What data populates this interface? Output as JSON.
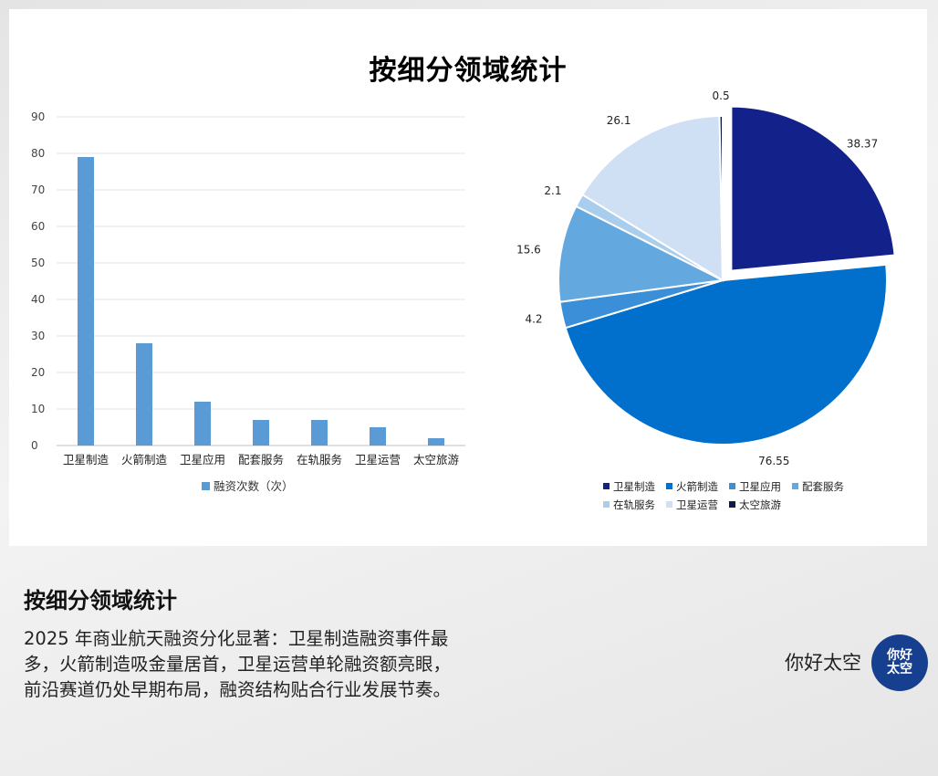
{
  "title": "按细分领域统计",
  "chart_data": [
    {
      "type": "bar",
      "categories": [
        "卫星制造",
        "火箭制造",
        "卫星应用",
        "配套服务",
        "在轨服务",
        "卫星运营",
        "太空旅游"
      ],
      "series": [
        {
          "name": "融资次数（次）",
          "values": [
            79,
            28,
            12,
            7,
            7,
            5,
            2
          ]
        }
      ],
      "ylim": [
        0,
        90
      ],
      "yticks": [
        0,
        10,
        20,
        30,
        40,
        50,
        60,
        70,
        80,
        90
      ],
      "color": "#5b9bd5",
      "grid": true,
      "legend": "bottom"
    },
    {
      "type": "pie",
      "labels": [
        "卫星制造",
        "火箭制造",
        "卫星应用",
        "配套服务",
        "在轨服务",
        "卫星运营",
        "太空旅游"
      ],
      "values": [
        38.37,
        76.55,
        4.2,
        15.6,
        2.1,
        26.1,
        0.5
      ],
      "value_labels": [
        "38.37",
        "76.55",
        "4.2",
        "15.6",
        "2.1",
        "26.1",
        "0.5"
      ],
      "colors": [
        "#13218a",
        "#0070cc",
        "#3a8fd8",
        "#64a8e0",
        "#a9cdec",
        "#cfdff4",
        "#0d1b4a"
      ],
      "exploded": "卫星制造",
      "legend": "bottom"
    }
  ],
  "bottom": {
    "title": "按细分领域统计",
    "description": "2025 年商业航天融资分化显著：卫星制造融资事件最多，火箭制造吸金量居首，卫星运营单轮融资额亮眼，前沿赛道仍处早期布局，融资结构贴合行业发展节奏。"
  },
  "brand": {
    "name": "你好太空",
    "logo_text": "你好太空"
  }
}
